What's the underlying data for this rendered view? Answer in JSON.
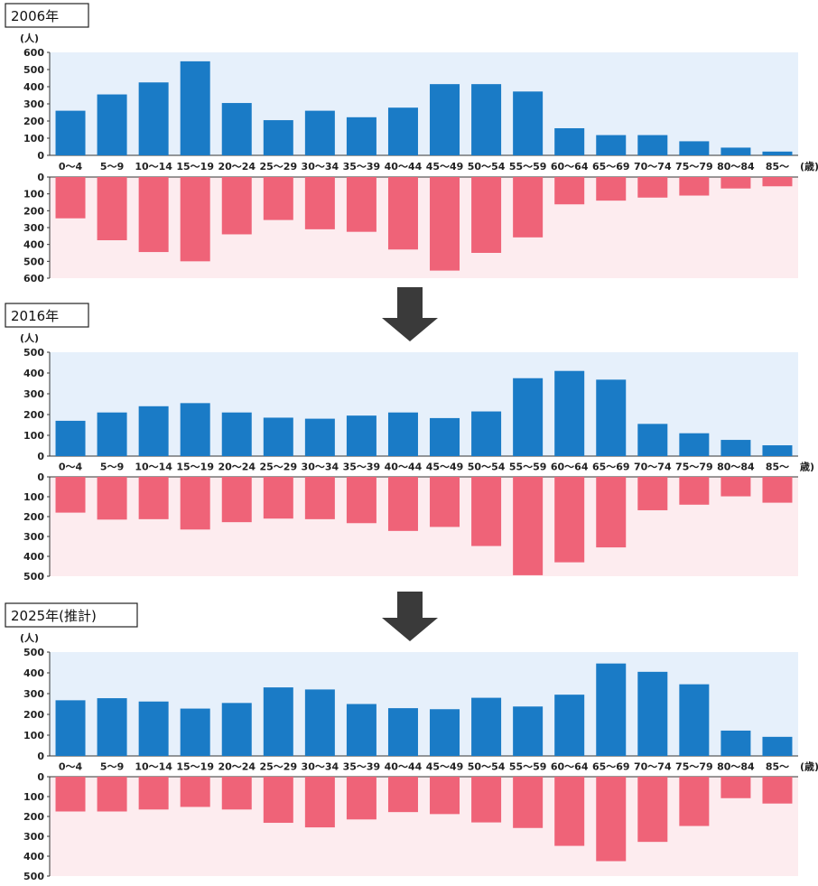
{
  "chart_data": [
    {
      "type": "bar",
      "title": "2006年",
      "y_unit": "(人)",
      "x_unit": "(歳)",
      "categories": [
        "0～4",
        "5～9",
        "10～14",
        "15～19",
        "20～24",
        "25～29",
        "30～34",
        "35～39",
        "40～44",
        "45～49",
        "50～54",
        "55～59",
        "60～64",
        "65～69",
        "70～74",
        "75～79",
        "80～84",
        "85～"
      ],
      "top_ticks": [
        "600",
        "500",
        "400",
        "300",
        "200",
        "100",
        "0"
      ],
      "bottom_ticks": [
        "0",
        "100",
        "200",
        "300",
        "400",
        "500",
        "600"
      ],
      "ylim_top": [
        0,
        600
      ],
      "ylim_bottom": [
        0,
        600
      ],
      "series": [
        {
          "values": [
            260,
            355,
            425,
            548,
            305,
            205,
            260,
            222,
            278,
            415,
            415,
            372,
            158,
            118,
            118,
            82,
            45,
            22
          ],
          "color": "#1a7bc6",
          "direction": "up"
        },
        {
          "values": [
            245,
            375,
            445,
            500,
            340,
            255,
            310,
            325,
            430,
            555,
            450,
            358,
            162,
            140,
            122,
            110,
            68,
            55
          ],
          "color": "#ef6378",
          "direction": "down"
        }
      ]
    },
    {
      "type": "bar",
      "title": "2016年",
      "y_unit": "(人)",
      "x_unit": "歳)",
      "categories": [
        "0～4",
        "5～9",
        "10～14",
        "15～19",
        "20～24",
        "25～29",
        "30～34",
        "35～39",
        "40～44",
        "45～49",
        "50～54",
        "55～59",
        "60～64",
        "65～69",
        "70～74",
        "75～79",
        "80～84",
        "85～"
      ],
      "top_ticks": [
        "500",
        "400",
        "300",
        "200",
        "100",
        "0"
      ],
      "bottom_ticks": [
        "0",
        "100",
        "200",
        "300",
        "400",
        "500"
      ],
      "ylim_top": [
        0,
        500
      ],
      "ylim_bottom": [
        0,
        500
      ],
      "series": [
        {
          "values": [
            170,
            210,
            240,
            255,
            210,
            185,
            180,
            195,
            210,
            183,
            215,
            375,
            410,
            368,
            155,
            110,
            78,
            52
          ],
          "color": "#1a7bc6",
          "direction": "up"
        },
        {
          "values": [
            180,
            215,
            213,
            265,
            228,
            210,
            213,
            233,
            272,
            252,
            348,
            495,
            430,
            355,
            168,
            140,
            98,
            130
          ],
          "color": "#ef6378",
          "direction": "down"
        }
      ]
    },
    {
      "type": "bar",
      "title": "2025年(推計)",
      "y_unit": "(人)",
      "x_unit": "(歳)",
      "categories": [
        "0～4",
        "5～9",
        "10～14",
        "15～19",
        "20～24",
        "25～29",
        "30～34",
        "35～39",
        "40～44",
        "45～49",
        "50～54",
        "55～59",
        "60～64",
        "65～69",
        "70～74",
        "75～79",
        "80～84",
        "85～"
      ],
      "top_ticks": [
        "500",
        "400",
        "300",
        "200",
        "100",
        "0"
      ],
      "bottom_ticks": [
        "0",
        "100",
        "200",
        "300",
        "400",
        "500"
      ],
      "ylim_top": [
        0,
        500
      ],
      "ylim_bottom": [
        0,
        500
      ],
      "series": [
        {
          "values": [
            268,
            278,
            262,
            228,
            255,
            330,
            320,
            250,
            230,
            225,
            280,
            238,
            295,
            445,
            405,
            345,
            122,
            92
          ],
          "color": "#1a7bc6",
          "direction": "up"
        },
        {
          "values": [
            175,
            175,
            165,
            152,
            165,
            232,
            255,
            215,
            178,
            188,
            230,
            258,
            348,
            425,
            328,
            248,
            108,
            135
          ],
          "color": "#ef6378",
          "direction": "down"
        }
      ]
    }
  ],
  "colors": {
    "top_bg": "#e6f0fb",
    "bottom_bg": "#fdecef",
    "arrow": "#3a3a3a"
  },
  "icons": {
    "arrow": "down-arrow-icon"
  }
}
